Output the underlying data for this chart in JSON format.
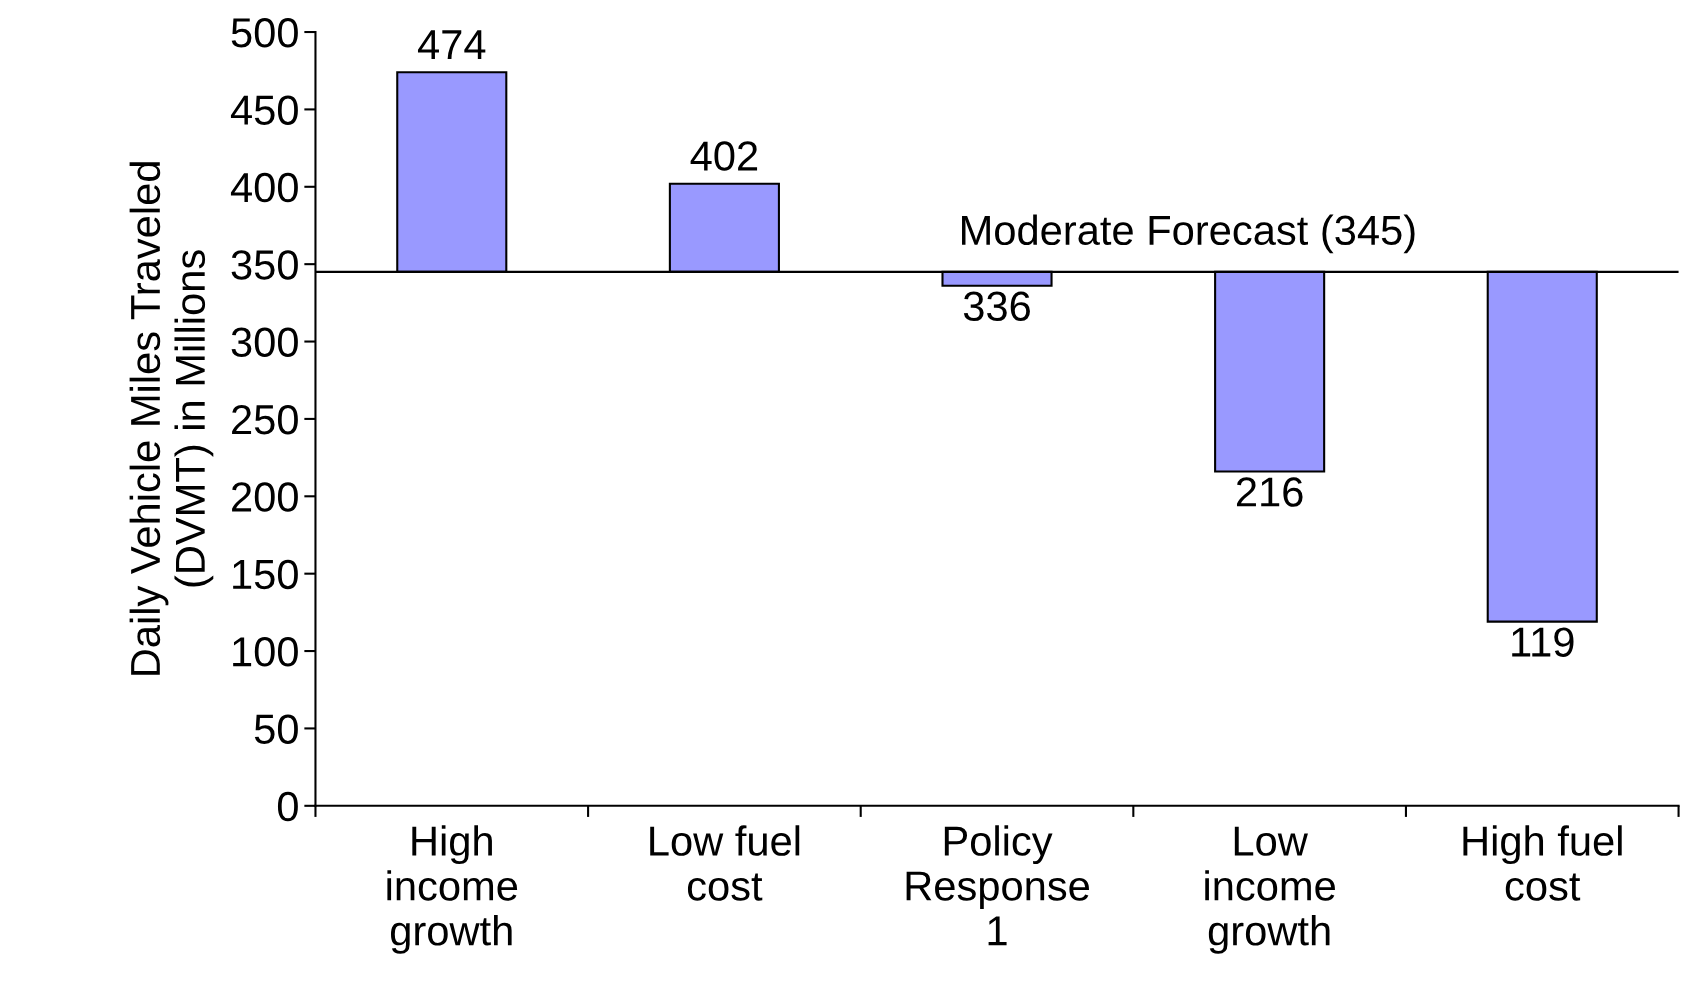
{
  "chart_data": {
    "type": "bar",
    "ylabel": "Daily Vehicle Miles Traveled\n(DVMT) in Millions",
    "categories": [
      "High\nincome\ngrowth",
      "Low fuel\ncost",
      "Policy\nResponse\n1",
      "Low\nincome\ngrowth",
      "High fuel\ncost"
    ],
    "base": [
      345,
      345,
      345,
      345,
      345
    ],
    "values": [
      129,
      57,
      -9,
      -129,
      -226
    ],
    "value_labels": [
      "474",
      "402",
      "336",
      "216",
      "119"
    ],
    "color": "#9999ff",
    "ylim": [
      0,
      500
    ],
    "yticks": [
      0,
      50,
      100,
      150,
      200,
      250,
      300,
      350,
      400,
      450,
      500
    ],
    "ref_lines": [
      {
        "axis": "y",
        "value": 345,
        "label": "Moderate Forecast (345)",
        "color": "#000000"
      }
    ],
    "grid": false,
    "legend": false
  }
}
